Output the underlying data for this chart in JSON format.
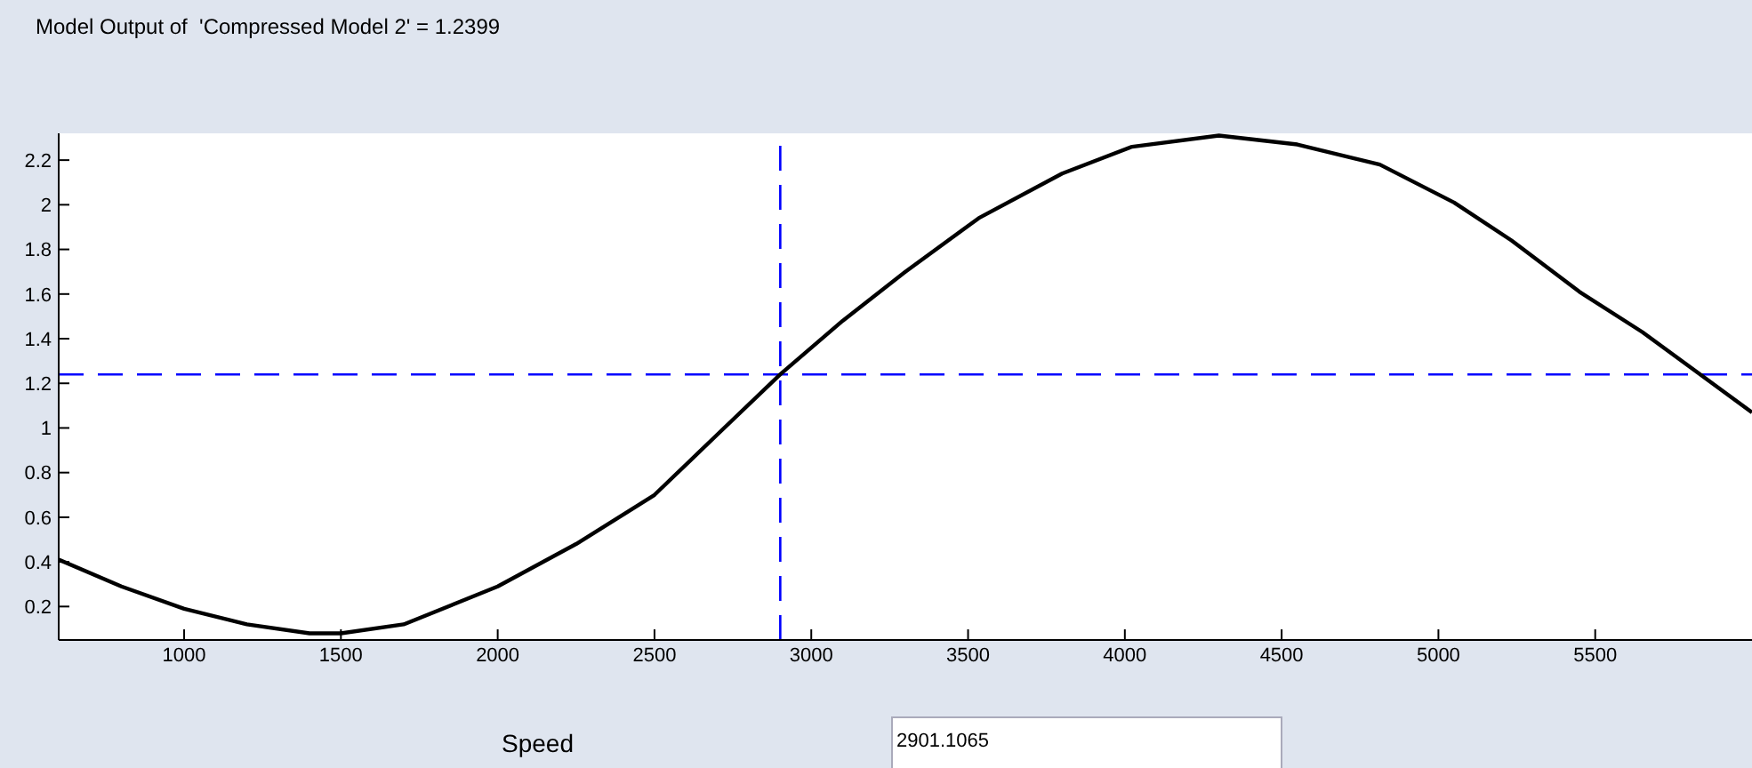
{
  "chart_data": {
    "type": "line",
    "title": "Model Output of  'Compressed Model 2' = 1.2399",
    "x": [
      600,
      800,
      1000,
      1200,
      1400,
      1500,
      1700,
      2000,
      2250,
      2500,
      2700,
      2901.1065,
      3100,
      3300,
      3534,
      3800,
      4023,
      4300,
      4550,
      4813,
      5050,
      5233,
      5450,
      5650,
      5830,
      6000
    ],
    "series": [
      {
        "color": "#000000",
        "values": [
          0.41,
          0.29,
          0.19,
          0.12,
          0.08,
          0.08,
          0.12,
          0.29,
          0.48,
          0.7,
          0.97,
          1.24,
          1.48,
          1.7,
          1.94,
          2.14,
          2.26,
          2.31,
          2.27,
          2.18,
          2.01,
          1.84,
          1.61,
          1.43,
          1.245,
          1.07
        ]
      }
    ],
    "xlim": [
      600,
      6000
    ],
    "ylim": [
      0.05,
      2.32
    ],
    "xticks": [
      1000,
      1500,
      2000,
      2500,
      3000,
      3500,
      4000,
      4500,
      5000,
      5500
    ],
    "yticks": [
      0.2,
      0.4,
      0.6,
      0.8,
      1,
      1.2,
      1.4,
      1.6,
      1.8,
      2,
      2.2
    ],
    "line_style": "solid",
    "ref_lines": [
      {
        "axis": "x",
        "value": 2901.1065,
        "color": "#0000ff",
        "line_style": "dashed"
      },
      {
        "axis": "y",
        "value": 1.2399,
        "color": "#0000ff",
        "line_style": "dashed"
      }
    ],
    "annotations": [
      "Speed",
      "2901.1065"
    ]
  }
}
